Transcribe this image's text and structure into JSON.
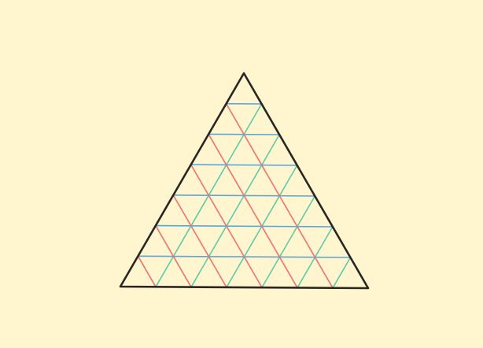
{
  "diagram": {
    "type": "triangular-grid",
    "divisions": 7,
    "colors": {
      "background": "#FFF5CF",
      "outline": "#2A2622",
      "horizontal_lines": "#5AA6D6",
      "left_diagonal_lines": "#5CCBA8",
      "right_diagonal_lines": "#F07272"
    }
  }
}
